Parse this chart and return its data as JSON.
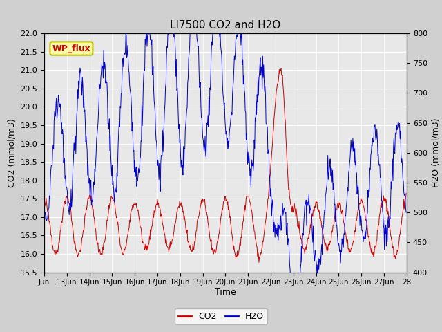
{
  "title": "LI7500 CO2 and H2O",
  "xlabel": "Time",
  "ylabel_left": "CO2 (mmol/m3)",
  "ylabel_right": "H2O (mmol/m3)",
  "co2_ylim": [
    15.5,
    22.0
  ],
  "h2o_ylim": [
    400,
    800
  ],
  "co2_yticks": [
    15.5,
    16.0,
    16.5,
    17.0,
    17.5,
    18.0,
    18.5,
    19.0,
    19.5,
    20.0,
    20.5,
    21.0,
    21.5,
    22.0
  ],
  "h2o_yticks": [
    400,
    450,
    500,
    550,
    600,
    650,
    700,
    750,
    800
  ],
  "co2_color": "#cc0000",
  "h2o_color": "#0000cc",
  "plot_bg_color": "#e8e8e8",
  "fig_bg_color": "#d0d0d0",
  "annotation_text": "WP_flux",
  "annotation_bg": "#ffffaa",
  "annotation_border": "#bbbb00",
  "annotation_text_color": "#cc0000",
  "legend_co2": "CO2",
  "legend_h2o": "H2O",
  "x_tick_labels": [
    "Jun",
    "13Jun",
    "14Jun",
    "15Jun",
    "16Jun",
    "17Jun",
    "18Jun",
    "19Jun",
    "20Jun",
    "21Jun",
    "22Jun",
    "23Jun",
    "24Jun",
    "25Jun",
    "26Jun",
    "27Jun",
    "28"
  ],
  "seed": 12345
}
